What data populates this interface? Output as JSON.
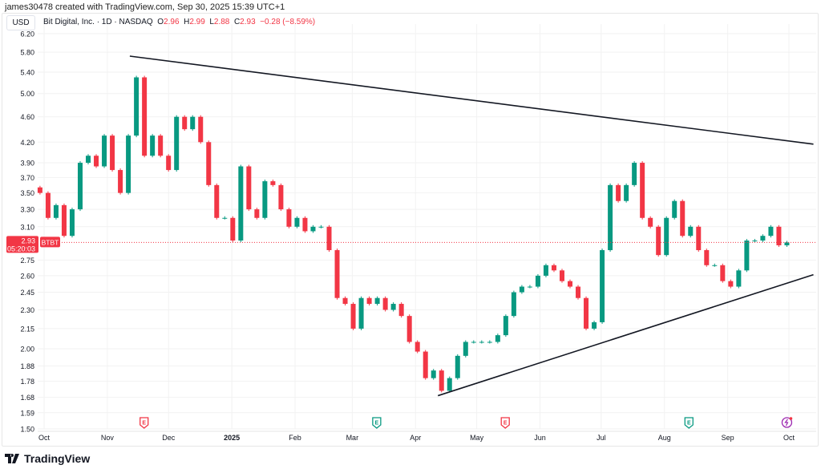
{
  "header": {
    "credit": "james30478 created with TradingView.com, Sep 30, 2025 15:39 UTC+1"
  },
  "currency_button": "USD",
  "legend": {
    "symbol": "Bit Digital, Inc. · 1D · NASDAQ",
    "o_label": "O",
    "o": "2.96",
    "h_label": "H",
    "h": "2.99",
    "l_label": "L",
    "l": "2.88",
    "c_label": "C",
    "c": "2.93",
    "change": "−0.28 (−8.59%)"
  },
  "price_label": {
    "price": "2.93",
    "countdown": "05:20:03",
    "ticker": "BTBT"
  },
  "logo": "TradingView",
  "colors": {
    "up": "#089981",
    "down": "#f23645",
    "trendline": "#131722",
    "grid": "#f2f2f2",
    "dividend": "#9c27b0"
  },
  "chart_data": {
    "type": "candlestick",
    "scale": "log",
    "ylim": [
      1.5,
      6.2
    ],
    "x_range": [
      "2024-09-29",
      "2025-09-30"
    ],
    "grid": true,
    "y_ticks": [
      "6.20",
      "5.80",
      "5.40",
      "5.00",
      "4.60",
      "4.20",
      "3.90",
      "3.70",
      "3.50",
      "3.30",
      "3.10",
      "2.75",
      "2.60",
      "2.45",
      "2.30",
      "2.15",
      "2.00",
      "1.88",
      "1.78",
      "1.68",
      "1.59",
      "1.50"
    ],
    "x_ticks": [
      {
        "label": "Oct",
        "date": "2024-10-01"
      },
      {
        "label": "Nov",
        "date": "2024-11-01"
      },
      {
        "label": "Dec",
        "date": "2024-12-01"
      },
      {
        "label": "2025",
        "date": "2025-01-01",
        "bold": true
      },
      {
        "label": "Feb",
        "date": "2025-02-01"
      },
      {
        "label": "Mar",
        "date": "2025-03-01"
      },
      {
        "label": "Apr",
        "date": "2025-04-01"
      },
      {
        "label": "May",
        "date": "2025-05-01"
      },
      {
        "label": "Jun",
        "date": "2025-06-01"
      },
      {
        "label": "Jul",
        "date": "2025-07-01"
      },
      {
        "label": "Aug",
        "date": "2025-08-01"
      },
      {
        "label": "Sep",
        "date": "2025-09-01"
      },
      {
        "label": "Oct",
        "date": "2025-10-01"
      }
    ],
    "closes": [
      3.5,
      3.2,
      3.35,
      3.0,
      3.3,
      3.9,
      4.0,
      3.85,
      4.3,
      3.8,
      3.5,
      4.3,
      5.3,
      4.0,
      4.3,
      4.0,
      3.8,
      4.6,
      4.4,
      4.6,
      4.2,
      3.6,
      3.2,
      3.2,
      2.95,
      3.85,
      3.3,
      3.2,
      3.65,
      3.6,
      3.3,
      3.1,
      3.2,
      3.05,
      3.1,
      3.1,
      2.85,
      2.4,
      2.35,
      2.15,
      2.4,
      2.35,
      2.4,
      2.3,
      2.35,
      2.25,
      2.05,
      1.98,
      1.8,
      1.85,
      1.72,
      1.8,
      1.95,
      2.05,
      2.05,
      2.05,
      2.05,
      2.1,
      2.25,
      2.45,
      2.5,
      2.5,
      2.6,
      2.7,
      2.65,
      2.55,
      2.5,
      2.4,
      2.15,
      2.2,
      2.85,
      3.6,
      3.4,
      3.6,
      3.9,
      3.2,
      3.1,
      2.8,
      3.2,
      3.4,
      3.0,
      3.1,
      2.85,
      2.7,
      2.7,
      2.55,
      2.5,
      2.65,
      2.95,
      2.95,
      3.0,
      3.1,
      2.9,
      2.93
    ],
    "last_price": 2.93,
    "trendlines": [
      {
        "from": {
          "date": "2024-11-12",
          "price": 5.72
        },
        "to": {
          "date": "2025-10-13",
          "price": 4.17
        }
      },
      {
        "from": {
          "date": "2025-04-12",
          "price": 1.69
        },
        "to": {
          "date": "2025-10-13",
          "price": 2.61
        }
      }
    ],
    "events": [
      {
        "type": "earnings",
        "label": "E",
        "date": "2024-11-19",
        "color": "#f23645"
      },
      {
        "type": "earnings",
        "label": "E",
        "date": "2025-03-13",
        "color": "#089981"
      },
      {
        "type": "earnings",
        "label": "E",
        "date": "2025-05-15",
        "color": "#f23645"
      },
      {
        "type": "earnings",
        "label": "E",
        "date": "2025-08-13",
        "color": "#089981"
      },
      {
        "type": "dividend-split",
        "label": "",
        "date": "2025-09-30",
        "color": "#9c27b0"
      }
    ]
  }
}
